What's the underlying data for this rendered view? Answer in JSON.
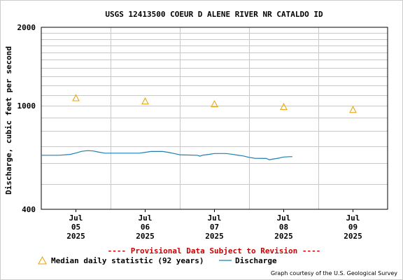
{
  "chart_data": {
    "type": "line",
    "title": "USGS 12413500 COEUR D ALENE RIVER NR CATALDO ID",
    "ylabel": "Discharge, cubic feet per second",
    "xlabel": "",
    "y_scale": "log",
    "ylim": [
      400,
      2000
    ],
    "y_ticks": [
      {
        "value": 400,
        "label": "400"
      },
      {
        "value": 1000,
        "label": "1000"
      },
      {
        "value": 2000,
        "label": "2000"
      }
    ],
    "xlim": [
      "2025-07-04T12:00",
      "2025-07-09T12:00"
    ],
    "x_ticks": [
      {
        "value": "2025-07-05T00:00",
        "lines": [
          "Jul",
          "05",
          "2025"
        ]
      },
      {
        "value": "2025-07-06T00:00",
        "lines": [
          "Jul",
          "06",
          "2025"
        ]
      },
      {
        "value": "2025-07-07T00:00",
        "lines": [
          "Jul",
          "07",
          "2025"
        ]
      },
      {
        "value": "2025-07-08T00:00",
        "lines": [
          "Jul",
          "08",
          "2025"
        ]
      },
      {
        "value": "2025-07-09T00:00",
        "lines": [
          "Jul",
          "09",
          "2025"
        ]
      }
    ],
    "grid": true,
    "series": [
      {
        "name": "Median daily statistic (92 years)",
        "kind": "marker",
        "marker": "triangle",
        "color": "#e8a000",
        "points": [
          {
            "x": "2025-07-05T00:00",
            "y": 1070
          },
          {
            "x": "2025-07-06T00:00",
            "y": 1040
          },
          {
            "x": "2025-07-07T00:00",
            "y": 1015
          },
          {
            "x": "2025-07-08T00:00",
            "y": 990
          },
          {
            "x": "2025-07-09T00:00",
            "y": 965
          }
        ]
      },
      {
        "name": "Discharge",
        "kind": "line",
        "color": "#1f7fb4",
        "points": [
          {
            "x": "2025-07-04T12:00",
            "y": 645
          },
          {
            "x": "2025-07-04T18:00",
            "y": 645
          },
          {
            "x": "2025-07-04T22:00",
            "y": 650
          },
          {
            "x": "2025-07-05T00:00",
            "y": 658
          },
          {
            "x": "2025-07-05T02:00",
            "y": 668
          },
          {
            "x": "2025-07-05T04:00",
            "y": 672
          },
          {
            "x": "2025-07-05T06:00",
            "y": 670
          },
          {
            "x": "2025-07-05T08:00",
            "y": 663
          },
          {
            "x": "2025-07-05T10:00",
            "y": 657
          },
          {
            "x": "2025-07-05T16:00",
            "y": 657
          },
          {
            "x": "2025-07-05T22:00",
            "y": 657
          },
          {
            "x": "2025-07-06T00:00",
            "y": 662
          },
          {
            "x": "2025-07-06T02:00",
            "y": 667
          },
          {
            "x": "2025-07-06T06:00",
            "y": 667
          },
          {
            "x": "2025-07-06T08:00",
            "y": 662
          },
          {
            "x": "2025-07-06T10:00",
            "y": 655
          },
          {
            "x": "2025-07-06T12:00",
            "y": 648
          },
          {
            "x": "2025-07-06T18:00",
            "y": 645
          },
          {
            "x": "2025-07-06T19:00",
            "y": 640
          },
          {
            "x": "2025-07-06T20:00",
            "y": 646
          },
          {
            "x": "2025-07-06T22:00",
            "y": 650
          },
          {
            "x": "2025-07-07T00:00",
            "y": 655
          },
          {
            "x": "2025-07-07T04:00",
            "y": 655
          },
          {
            "x": "2025-07-07T06:00",
            "y": 651
          },
          {
            "x": "2025-07-07T08:00",
            "y": 646
          },
          {
            "x": "2025-07-07T10:00",
            "y": 641
          },
          {
            "x": "2025-07-07T12:00",
            "y": 633
          },
          {
            "x": "2025-07-07T14:00",
            "y": 628
          },
          {
            "x": "2025-07-07T18:00",
            "y": 627
          },
          {
            "x": "2025-07-07T19:00",
            "y": 620
          },
          {
            "x": "2025-07-07T20:00",
            "y": 623
          },
          {
            "x": "2025-07-07T22:00",
            "y": 628
          },
          {
            "x": "2025-07-08T00:00",
            "y": 635
          },
          {
            "x": "2025-07-08T02:00",
            "y": 637
          },
          {
            "x": "2025-07-08T03:00",
            "y": 637
          }
        ]
      }
    ],
    "legend": [
      {
        "marker": "triangle",
        "label": "Median daily statistic (92 years)"
      },
      {
        "marker": "line",
        "label": "Discharge"
      }
    ],
    "legend_placement": "bottom",
    "annotations": {
      "provisional": "---- Provisional Data Subject to Revision ----",
      "credit": "Graph courtesy of the U.S. Geological Survey"
    },
    "colors": {
      "provisional": "#cc0000",
      "median": "#e8a000",
      "discharge": "#1f7fb4",
      "grid": "#c8c8c8"
    }
  }
}
